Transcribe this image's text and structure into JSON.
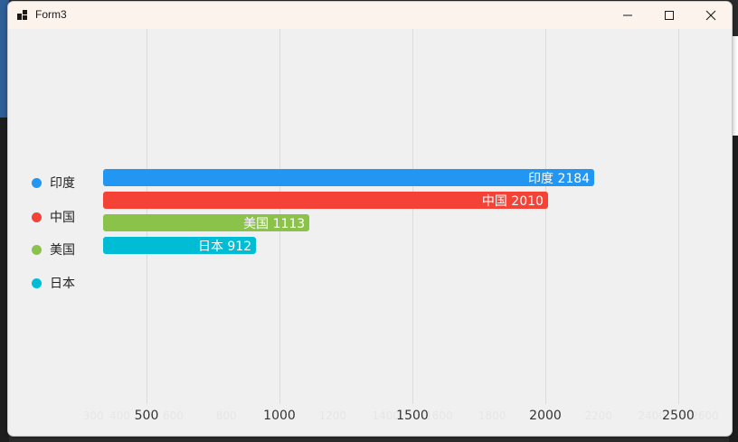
{
  "window": {
    "title": "Form3",
    "icon": "windows-form-icon",
    "controls": [
      "minimize-icon",
      "maximize-icon",
      "close-icon"
    ]
  },
  "chart_data": {
    "type": "bar",
    "orientation": "horizontal",
    "categories": [
      "印度",
      "中国",
      "美国",
      "日本"
    ],
    "values": [
      2184,
      2010,
      1113,
      912
    ],
    "labels": [
      "印度 2184",
      "中国 2010",
      "美国 1113",
      "日本 912"
    ],
    "colors": [
      "#2196f3",
      "#f44336",
      "#8bc34a",
      "#00bcd4"
    ],
    "xticks": [
      "500",
      "1000",
      "1500",
      "2000",
      "2500"
    ],
    "ghost_ticks": [
      "300",
      "400",
      "600",
      "800",
      "1200",
      "1400",
      "1600",
      "1800",
      "2200",
      "2400",
      "2600"
    ],
    "xlim": [
      300,
      2600
    ],
    "grid": true,
    "legend_position": "left",
    "title": "",
    "xlabel": "",
    "ylabel": ""
  }
}
